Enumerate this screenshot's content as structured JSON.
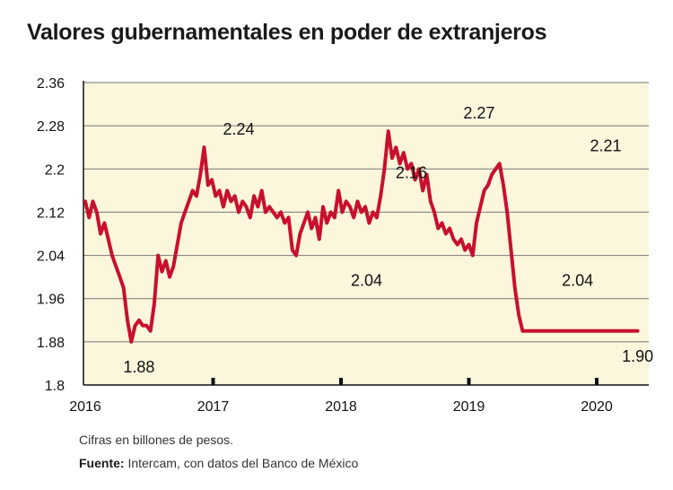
{
  "chart_data": {
    "type": "line",
    "title": "Valores gubernamentales en poder de extranjeros",
    "xlabel": "",
    "ylabel": "",
    "ylim": [
      1.8,
      2.36
    ],
    "yticks": [
      "1.8",
      "1.88",
      "1.96",
      "2.04",
      "2.12",
      "2.2",
      "2.28",
      "2.36"
    ],
    "xticks": [
      "2016",
      "2017",
      "2018",
      "2019",
      "2020"
    ],
    "xlim": [
      2016,
      2020.45
    ],
    "series": [
      {
        "name": "Valores gubernamentales",
        "color": "#c8102e",
        "x": [
          2016.0,
          2016.03,
          2016.06,
          2016.09,
          2016.12,
          2016.15,
          2016.18,
          2016.21,
          2016.24,
          2016.27,
          2016.3,
          2016.33,
          2016.36,
          2016.39,
          2016.42,
          2016.45,
          2016.48,
          2016.51,
          2016.54,
          2016.57,
          2016.6,
          2016.63,
          2016.66,
          2016.69,
          2016.72,
          2016.75,
          2016.78,
          2016.81,
          2016.84,
          2016.87,
          2016.9,
          2016.93,
          2016.96,
          2016.99,
          2017.02,
          2017.05,
          2017.08,
          2017.11,
          2017.14,
          2017.17,
          2017.2,
          2017.23,
          2017.26,
          2017.29,
          2017.32,
          2017.35,
          2017.38,
          2017.41,
          2017.44,
          2017.47,
          2017.5,
          2017.53,
          2017.56,
          2017.59,
          2017.62,
          2017.65,
          2017.68,
          2017.71,
          2017.74,
          2017.77,
          2017.8,
          2017.83,
          2017.86,
          2017.89,
          2017.92,
          2017.95,
          2017.98,
          2018.01,
          2018.04,
          2018.07,
          2018.1,
          2018.13,
          2018.16,
          2018.19,
          2018.22,
          2018.25,
          2018.28,
          2018.31,
          2018.34,
          2018.37,
          2018.4,
          2018.43,
          2018.46,
          2018.49,
          2018.52,
          2018.55,
          2018.58,
          2018.61,
          2018.64,
          2018.67,
          2018.7,
          2018.73,
          2018.76,
          2018.79,
          2018.82,
          2018.85,
          2018.88,
          2018.91,
          2018.94,
          2018.97,
          2019.0,
          2019.03,
          2019.06,
          2019.09,
          2019.12,
          2019.15,
          2019.18,
          2019.21,
          2019.24,
          2019.27,
          2019.3,
          2019.33,
          2019.36,
          2019.39,
          2019.42,
          2019.45,
          2019.48,
          2019.51,
          2019.54,
          2019.57,
          2019.6,
          2019.63,
          2019.66,
          2019.69,
          2019.72,
          2019.75,
          2019.78,
          2019.81,
          2019.84,
          2019.87,
          2019.9,
          2019.93,
          2019.96,
          2019.99,
          2020.02,
          2020.05,
          2020.08,
          2020.11,
          2020.14,
          2020.17,
          2020.2,
          2020.23,
          2020.26,
          2020.29,
          2020.32
        ],
        "values": [
          2.14,
          2.11,
          2.14,
          2.12,
          2.08,
          2.1,
          2.07,
          2.04,
          2.02,
          2.0,
          1.98,
          1.92,
          1.88,
          1.91,
          1.92,
          1.91,
          1.91,
          1.9,
          1.95,
          2.04,
          2.01,
          2.03,
          2.0,
          2.02,
          2.06,
          2.1,
          2.12,
          2.14,
          2.16,
          2.15,
          2.19,
          2.24,
          2.17,
          2.18,
          2.15,
          2.16,
          2.13,
          2.16,
          2.14,
          2.15,
          2.12,
          2.14,
          2.13,
          2.11,
          2.15,
          2.13,
          2.16,
          2.12,
          2.13,
          2.12,
          2.11,
          2.12,
          2.1,
          2.11,
          2.05,
          2.04,
          2.08,
          2.1,
          2.12,
          2.09,
          2.11,
          2.07,
          2.13,
          2.1,
          2.12,
          2.11,
          2.16,
          2.12,
          2.14,
          2.13,
          2.11,
          2.14,
          2.12,
          2.13,
          2.1,
          2.12,
          2.11,
          2.15,
          2.2,
          2.27,
          2.22,
          2.24,
          2.21,
          2.23,
          2.2,
          2.21,
          2.18,
          2.2,
          2.16,
          2.19,
          2.14,
          2.12,
          2.09,
          2.1,
          2.08,
          2.09,
          2.07,
          2.06,
          2.07,
          2.05,
          2.06,
          2.04,
          2.1,
          2.13,
          2.16,
          2.17,
          2.19,
          2.2,
          2.21,
          2.17,
          2.12,
          2.05,
          1.98,
          1.93,
          1.9,
          1.9,
          1.9,
          1.9,
          1.9,
          1.9,
          1.9,
          1.9,
          1.9,
          1.9,
          1.9,
          1.9,
          1.9,
          1.9,
          1.9,
          1.9,
          1.9,
          1.9,
          1.9,
          1.9,
          1.9,
          1.9,
          1.9,
          1.9,
          1.9,
          1.9,
          1.9,
          1.9,
          1.9,
          1.9,
          1.9
        ]
      }
    ],
    "annotations": [
      {
        "text": "1.88",
        "x": 2016.42,
        "y": 1.88,
        "pos": "below"
      },
      {
        "text": "2.24",
        "x": 2017.2,
        "y": 2.24,
        "pos": "above"
      },
      {
        "text": "2.04",
        "x": 2018.2,
        "y": 2.04,
        "pos": "below"
      },
      {
        "text": "2.16",
        "x": 2018.55,
        "y": 2.16,
        "pos": "above"
      },
      {
        "text": "2.27",
        "x": 2019.08,
        "y": 2.27,
        "pos": "above"
      },
      {
        "text": "2.04",
        "x": 2019.85,
        "y": 2.04,
        "pos": "below"
      },
      {
        "text": "2.21",
        "x": 2020.07,
        "y": 2.21,
        "pos": "above"
      },
      {
        "text": "1.90",
        "x": 2020.32,
        "y": 1.9,
        "pos": "below"
      }
    ]
  },
  "footer": {
    "note": "Cifras en billones de pesos.",
    "source_label": "Fuente:",
    "source_text": " Intercam, con datos del Banco de México"
  },
  "colors": {
    "plot_bg": "#fbf6dc",
    "line": "#c8102e",
    "grid": "#777777"
  }
}
